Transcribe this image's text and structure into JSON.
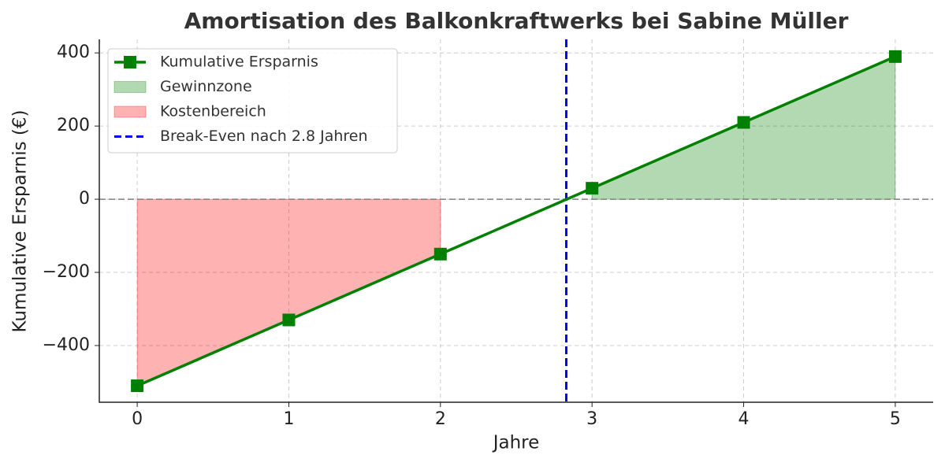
{
  "chart_data": {
    "type": "line",
    "title": "Amortisation des Balkonkraftwerks bei Sabine Müller",
    "x_label": "Jahre",
    "y_label": "Kumulative Ersparnis (€)",
    "x": [
      0,
      1,
      2,
      3,
      4,
      5
    ],
    "series": [
      {
        "name": "Kumulative Ersparnis",
        "color": "#008000",
        "marker": "square",
        "values": [
          -510,
          -330,
          -150,
          30,
          210,
          390
        ]
      }
    ],
    "fills": [
      {
        "name": "Gewinnzone",
        "color": "#008000",
        "opacity": 0.3,
        "where": "above"
      },
      {
        "name": "Kostenbereich",
        "color": "#ff0000",
        "opacity": 0.3,
        "where": "below"
      }
    ],
    "hline": {
      "value": 0,
      "color": "#808080"
    },
    "vline": {
      "name": "Break-Even nach 2.8 Jahren",
      "value": 2.83,
      "color": "#0000ff"
    },
    "xlim": [
      -0.25,
      5.25
    ],
    "ylim": [
      -555,
      437
    ],
    "xticks": [
      0,
      1,
      2,
      3,
      4,
      5
    ],
    "yticks": [
      {
        "value": -400,
        "label": "−400"
      },
      {
        "value": -200,
        "label": "−200"
      },
      0,
      200,
      400
    ],
    "grid": true,
    "legend": "upper left"
  }
}
